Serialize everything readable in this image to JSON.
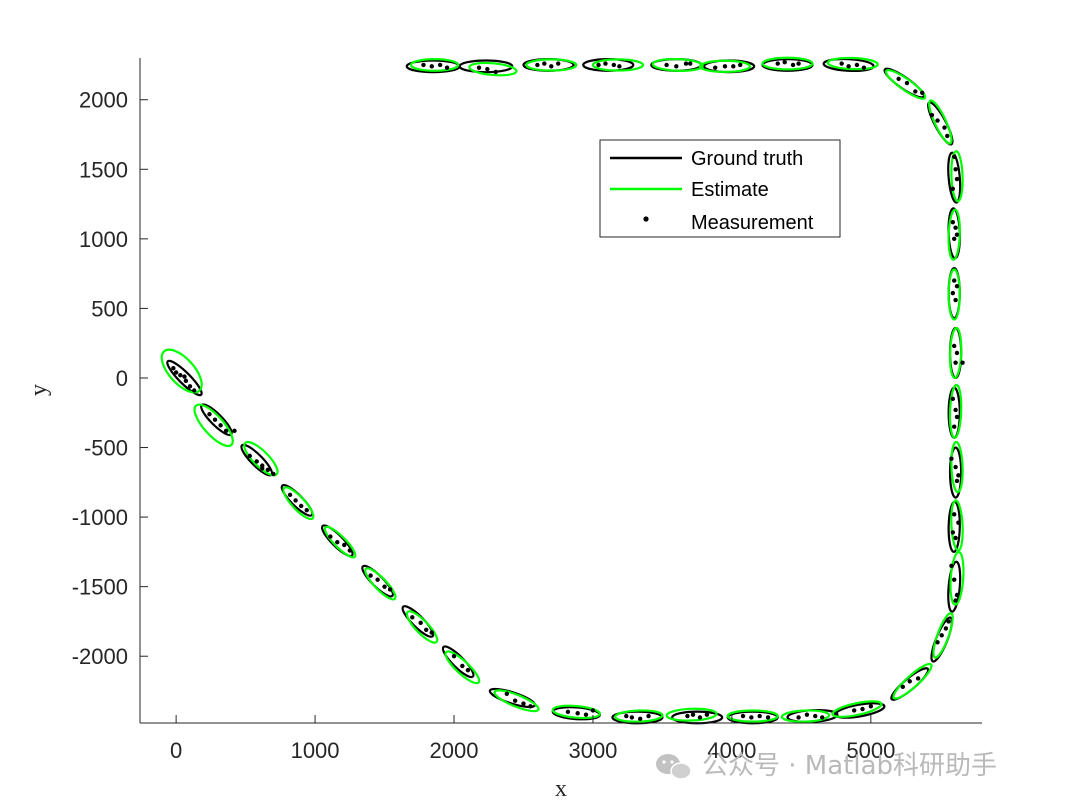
{
  "chart_data": {
    "type": "scatter",
    "xlabel": "x",
    "ylabel": "y",
    "xlim": [
      -260,
      5800
    ],
    "ylim": [
      -2480,
      2300
    ],
    "xticks": [
      0,
      1000,
      2000,
      3000,
      4000,
      5000
    ],
    "yticks": [
      2000,
      1500,
      1000,
      500,
      0,
      -500,
      -1000,
      -1500,
      -2000
    ],
    "legend": {
      "placement": "upper-right-inner",
      "entries": [
        {
          "name": "Ground truth",
          "color": "#000000",
          "style": "line"
        },
        {
          "name": "Estimate",
          "color": "#00ff00",
          "style": "line"
        },
        {
          "name": "Measurement",
          "color": "#000000",
          "style": "dot"
        }
      ]
    },
    "ground_truth_ellipses": [
      {
        "cx": 60,
        "cy": 0,
        "rx": 170,
        "ry": 40,
        "angle": -45
      },
      {
        "cx": 290,
        "cy": -300,
        "rx": 150,
        "ry": 40,
        "angle": -45
      },
      {
        "cx": 580,
        "cy": -590,
        "rx": 150,
        "ry": 40,
        "angle": -45
      },
      {
        "cx": 870,
        "cy": -880,
        "rx": 150,
        "ry": 40,
        "angle": -45
      },
      {
        "cx": 1160,
        "cy": -1170,
        "rx": 150,
        "ry": 40,
        "angle": -45
      },
      {
        "cx": 1450,
        "cy": -1460,
        "rx": 150,
        "ry": 40,
        "angle": -45
      },
      {
        "cx": 1740,
        "cy": -1750,
        "rx": 150,
        "ry": 40,
        "angle": -45
      },
      {
        "cx": 2030,
        "cy": -2040,
        "rx": 150,
        "ry": 40,
        "angle": -45
      },
      {
        "cx": 2420,
        "cy": -2300,
        "rx": 170,
        "ry": 40,
        "angle": -18
      },
      {
        "cx": 2880,
        "cy": -2410,
        "rx": 170,
        "ry": 42,
        "angle": -4
      },
      {
        "cx": 3320,
        "cy": -2440,
        "rx": 180,
        "ry": 42,
        "angle": 0
      },
      {
        "cx": 3750,
        "cy": -2440,
        "rx": 180,
        "ry": 42,
        "angle": 0
      },
      {
        "cx": 4150,
        "cy": -2440,
        "rx": 180,
        "ry": 42,
        "angle": 0
      },
      {
        "cx": 4580,
        "cy": -2430,
        "rx": 180,
        "ry": 42,
        "angle": 3
      },
      {
        "cx": 4920,
        "cy": -2390,
        "rx": 180,
        "ry": 42,
        "angle": 10
      },
      {
        "cx": 5280,
        "cy": -2200,
        "rx": 170,
        "ry": 40,
        "angle": 40
      },
      {
        "cx": 5510,
        "cy": -1880,
        "rx": 170,
        "ry": 40,
        "angle": 68
      },
      {
        "cx": 5600,
        "cy": -1500,
        "rx": 180,
        "ry": 40,
        "angle": 85
      },
      {
        "cx": 5600,
        "cy": -1070,
        "rx": 180,
        "ry": 40,
        "angle": 89
      },
      {
        "cx": 5610,
        "cy": -680,
        "rx": 180,
        "ry": 40,
        "angle": 90
      },
      {
        "cx": 5600,
        "cy": -250,
        "rx": 180,
        "ry": 40,
        "angle": 90
      },
      {
        "cx": 5610,
        "cy": 180,
        "rx": 180,
        "ry": 40,
        "angle": 90
      },
      {
        "cx": 5600,
        "cy": 610,
        "rx": 180,
        "ry": 40,
        "angle": 90
      },
      {
        "cx": 5600,
        "cy": 1040,
        "rx": 180,
        "ry": 40,
        "angle": 92
      },
      {
        "cx": 5600,
        "cy": 1440,
        "rx": 180,
        "ry": 40,
        "angle": 95
      },
      {
        "cx": 5500,
        "cy": 1830,
        "rx": 170,
        "ry": 40,
        "angle": 118
      },
      {
        "cx": 5240,
        "cy": 2120,
        "rx": 170,
        "ry": 40,
        "angle": 145
      },
      {
        "cx": 4840,
        "cy": 2250,
        "rx": 180,
        "ry": 42,
        "angle": 177
      },
      {
        "cx": 4400,
        "cy": 2250,
        "rx": 180,
        "ry": 42,
        "angle": 180
      },
      {
        "cx": 3980,
        "cy": 2240,
        "rx": 180,
        "ry": 42,
        "angle": 180
      },
      {
        "cx": 3600,
        "cy": 2250,
        "rx": 180,
        "ry": 42,
        "angle": 180
      },
      {
        "cx": 3110,
        "cy": 2250,
        "rx": 180,
        "ry": 42,
        "angle": 180
      },
      {
        "cx": 2680,
        "cy": 2250,
        "rx": 180,
        "ry": 42,
        "angle": 180
      },
      {
        "cx": 2230,
        "cy": 2240,
        "rx": 190,
        "ry": 42,
        "angle": 180
      },
      {
        "cx": 1850,
        "cy": 2240,
        "rx": 190,
        "ry": 42,
        "angle": 180
      }
    ],
    "estimate_ellipses": [
      {
        "cx": 40,
        "cy": 50,
        "rx": 190,
        "ry": 90,
        "angle": -48
      },
      {
        "cx": 270,
        "cy": -340,
        "rx": 190,
        "ry": 70,
        "angle": -48
      },
      {
        "cx": 610,
        "cy": -580,
        "rx": 160,
        "ry": 55,
        "angle": -45
      },
      {
        "cx": 880,
        "cy": -900,
        "rx": 150,
        "ry": 45,
        "angle": -47
      },
      {
        "cx": 1180,
        "cy": -1180,
        "rx": 150,
        "ry": 40,
        "angle": -45
      },
      {
        "cx": 1470,
        "cy": -1480,
        "rx": 150,
        "ry": 42,
        "angle": -46
      },
      {
        "cx": 1770,
        "cy": -1790,
        "rx": 150,
        "ry": 45,
        "angle": -46
      },
      {
        "cx": 2060,
        "cy": -2080,
        "rx": 160,
        "ry": 45,
        "angle": -43
      },
      {
        "cx": 2450,
        "cy": -2320,
        "rx": 170,
        "ry": 42,
        "angle": -22
      },
      {
        "cx": 2880,
        "cy": -2400,
        "rx": 170,
        "ry": 42,
        "angle": -5
      },
      {
        "cx": 3330,
        "cy": -2430,
        "rx": 170,
        "ry": 40,
        "angle": 2
      },
      {
        "cx": 3710,
        "cy": -2420,
        "rx": 180,
        "ry": 42,
        "angle": 2
      },
      {
        "cx": 4150,
        "cy": -2430,
        "rx": 180,
        "ry": 40,
        "angle": 0
      },
      {
        "cx": 4530,
        "cy": -2430,
        "rx": 170,
        "ry": 40,
        "angle": 2
      },
      {
        "cx": 4900,
        "cy": -2380,
        "rx": 180,
        "ry": 42,
        "angle": 12
      },
      {
        "cx": 5300,
        "cy": -2180,
        "rx": 180,
        "ry": 42,
        "angle": 42
      },
      {
        "cx": 5520,
        "cy": -1850,
        "rx": 170,
        "ry": 40,
        "angle": 70
      },
      {
        "cx": 5620,
        "cy": -1440,
        "rx": 190,
        "ry": 45,
        "angle": 86
      },
      {
        "cx": 5620,
        "cy": -1060,
        "rx": 180,
        "ry": 40,
        "angle": 93
      },
      {
        "cx": 5620,
        "cy": -640,
        "rx": 180,
        "ry": 40,
        "angle": 92
      },
      {
        "cx": 5610,
        "cy": -240,
        "rx": 190,
        "ry": 40,
        "angle": 88
      },
      {
        "cx": 5610,
        "cy": 180,
        "rx": 180,
        "ry": 40,
        "angle": 88
      },
      {
        "cx": 5600,
        "cy": 600,
        "rx": 180,
        "ry": 40,
        "angle": 90
      },
      {
        "cx": 5600,
        "cy": 1030,
        "rx": 180,
        "ry": 40,
        "angle": 88
      },
      {
        "cx": 5620,
        "cy": 1450,
        "rx": 180,
        "ry": 40,
        "angle": 92
      },
      {
        "cx": 5500,
        "cy": 1840,
        "rx": 170,
        "ry": 40,
        "angle": 115
      },
      {
        "cx": 5250,
        "cy": 2110,
        "rx": 170,
        "ry": 40,
        "angle": 145
      },
      {
        "cx": 4870,
        "cy": 2260,
        "rx": 180,
        "ry": 40,
        "angle": 178
      },
      {
        "cx": 4400,
        "cy": 2260,
        "rx": 180,
        "ry": 42,
        "angle": 180
      },
      {
        "cx": 3950,
        "cy": 2240,
        "rx": 180,
        "ry": 40,
        "angle": 180
      },
      {
        "cx": 3610,
        "cy": 2250,
        "rx": 180,
        "ry": 42,
        "angle": 178
      },
      {
        "cx": 3180,
        "cy": 2250,
        "rx": 180,
        "ry": 40,
        "angle": 180
      },
      {
        "cx": 2700,
        "cy": 2250,
        "rx": 180,
        "ry": 40,
        "angle": 180
      },
      {
        "cx": 2280,
        "cy": 2220,
        "rx": 170,
        "ry": 42,
        "angle": 175
      },
      {
        "cx": 1860,
        "cy": 2250,
        "rx": 170,
        "ry": 42,
        "angle": 180
      }
    ],
    "measurements": [
      [
        -20,
        70
      ],
      [
        30,
        20
      ],
      [
        70,
        -20
      ],
      [
        100,
        -60
      ],
      [
        130,
        -90
      ],
      [
        0,
        40
      ],
      [
        60,
        10
      ],
      [
        240,
        -260
      ],
      [
        280,
        -300
      ],
      [
        320,
        -340
      ],
      [
        360,
        -380
      ],
      [
        420,
        -380
      ],
      [
        530,
        -560
      ],
      [
        580,
        -600
      ],
      [
        620,
        -630
      ],
      [
        660,
        -660
      ],
      [
        700,
        -690
      ],
      [
        620,
        -650
      ],
      [
        820,
        -840
      ],
      [
        860,
        -880
      ],
      [
        900,
        -920
      ],
      [
        940,
        -950
      ],
      [
        1110,
        -1140
      ],
      [
        1160,
        -1180
      ],
      [
        1210,
        -1200
      ],
      [
        1250,
        -1240
      ],
      [
        1400,
        -1420
      ],
      [
        1450,
        -1450
      ],
      [
        1500,
        -1500
      ],
      [
        1540,
        -1520
      ],
      [
        1700,
        -1720
      ],
      [
        1760,
        -1760
      ],
      [
        1800,
        -1810
      ],
      [
        1840,
        -1830
      ],
      [
        2000,
        -2000
      ],
      [
        2060,
        -2070
      ],
      [
        2100,
        -2100
      ],
      [
        2380,
        -2270
      ],
      [
        2440,
        -2320
      ],
      [
        2500,
        -2340
      ],
      [
        2550,
        -2360
      ],
      [
        2820,
        -2400
      ],
      [
        2890,
        -2410
      ],
      [
        2950,
        -2420
      ],
      [
        3000,
        -2390
      ],
      [
        3240,
        -2430
      ],
      [
        3280,
        -2440
      ],
      [
        3340,
        -2450
      ],
      [
        3400,
        -2430
      ],
      [
        3680,
        -2430
      ],
      [
        3720,
        -2420
      ],
      [
        3770,
        -2440
      ],
      [
        3820,
        -2420
      ],
      [
        4080,
        -2430
      ],
      [
        4140,
        -2440
      ],
      [
        4200,
        -2430
      ],
      [
        4260,
        -2440
      ],
      [
        4480,
        -2440
      ],
      [
        4540,
        -2420
      ],
      [
        4600,
        -2430
      ],
      [
        4650,
        -2440
      ],
      [
        4880,
        -2390
      ],
      [
        4940,
        -2380
      ],
      [
        5000,
        -2360
      ],
      [
        5230,
        -2220
      ],
      [
        5280,
        -2180
      ],
      [
        5340,
        -2160
      ],
      [
        5480,
        -1900
      ],
      [
        5510,
        -1850
      ],
      [
        5540,
        -1800
      ],
      [
        5560,
        -1750
      ],
      [
        5580,
        -1350
      ],
      [
        5600,
        -1450
      ],
      [
        5620,
        -1560
      ],
      [
        5610,
        -1600
      ],
      [
        5600,
        -980
      ],
      [
        5630,
        -1040
      ],
      [
        5590,
        -1110
      ],
      [
        5610,
        -1150
      ],
      [
        5580,
        -580
      ],
      [
        5610,
        -640
      ],
      [
        5630,
        -700
      ],
      [
        5620,
        -740
      ],
      [
        5590,
        -150
      ],
      [
        5610,
        -230
      ],
      [
        5620,
        -280
      ],
      [
        5600,
        -350
      ],
      [
        5610,
        110
      ],
      [
        5620,
        180
      ],
      [
        5600,
        230
      ],
      [
        5660,
        110
      ],
      [
        5610,
        560
      ],
      [
        5590,
        610
      ],
      [
        5620,
        660
      ],
      [
        5600,
        700
      ],
      [
        5600,
        1000
      ],
      [
        5610,
        1080
      ],
      [
        5620,
        1030
      ],
      [
        5590,
        1120
      ],
      [
        5600,
        1590
      ],
      [
        5610,
        1500
      ],
      [
        5590,
        1360
      ],
      [
        5620,
        1430
      ],
      [
        5440,
        1890
      ],
      [
        5480,
        1850
      ],
      [
        5530,
        1800
      ],
      [
        5550,
        1740
      ],
      [
        5200,
        2150
      ],
      [
        5260,
        2120
      ],
      [
        5320,
        2060
      ],
      [
        5370,
        2050
      ],
      [
        4790,
        2260
      ],
      [
        4840,
        2240
      ],
      [
        4900,
        2250
      ],
      [
        4950,
        2230
      ],
      [
        4330,
        2260
      ],
      [
        4380,
        2270
      ],
      [
        4440,
        2250
      ],
      [
        4480,
        2260
      ],
      [
        3880,
        2230
      ],
      [
        3950,
        2240
      ],
      [
        4010,
        2240
      ],
      [
        4060,
        2250
      ],
      [
        3530,
        2250
      ],
      [
        3600,
        2240
      ],
      [
        3670,
        2260
      ],
      [
        3700,
        2260
      ],
      [
        3040,
        2250
      ],
      [
        3090,
        2260
      ],
      [
        3150,
        2250
      ],
      [
        3190,
        2240
      ],
      [
        2600,
        2250
      ],
      [
        2650,
        2260
      ],
      [
        2700,
        2240
      ],
      [
        2750,
        2260
      ],
      [
        2180,
        2230
      ],
      [
        2240,
        2220
      ],
      [
        2300,
        2200
      ],
      [
        1780,
        2250
      ],
      [
        1840,
        2240
      ],
      [
        1900,
        2250
      ],
      [
        1950,
        2230
      ]
    ]
  },
  "watermark": {
    "text": "公众号 · Matlab科研助手",
    "icon": "wechat-icon"
  }
}
